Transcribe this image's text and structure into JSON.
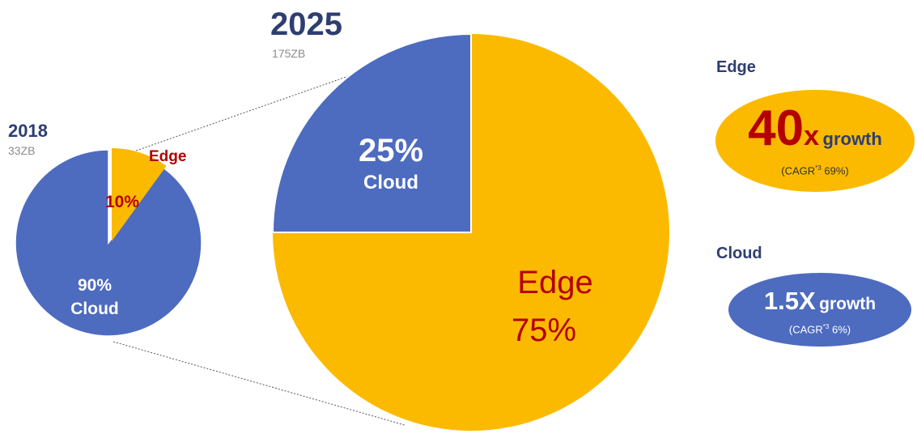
{
  "colors": {
    "edge": "#fbba00",
    "cloud": "#4d6bbf",
    "accent": "#b40000",
    "title": "#2e3e70",
    "subtle": "#8c8c8c"
  },
  "chart_data": [
    {
      "type": "pie",
      "title": "2018",
      "subtitle": "33ZB",
      "slices": [
        {
          "label": "Edge",
          "value": 10,
          "value_label": "10%"
        },
        {
          "label": "Cloud",
          "value": 90,
          "value_label": "90%"
        }
      ]
    },
    {
      "type": "pie",
      "title": "2025",
      "subtitle": "175ZB",
      "slices": [
        {
          "label": "Cloud",
          "value": 25,
          "value_label": "25%"
        },
        {
          "label": "Edge",
          "value": 75,
          "value_label": "75%"
        }
      ]
    }
  ],
  "growth": {
    "edge": {
      "heading": "Edge",
      "multiplier": "40",
      "x": "x",
      "growth": "growth",
      "cagr_prefix": "(CAGR",
      "cagr_note": "*3",
      "cagr_value": "69%)"
    },
    "cloud": {
      "heading": "Cloud",
      "multiplier": "1.5X",
      "growth": "growth",
      "cagr_prefix": "(CAGR",
      "cagr_note": "*3",
      "cagr_value": "6%)"
    }
  }
}
